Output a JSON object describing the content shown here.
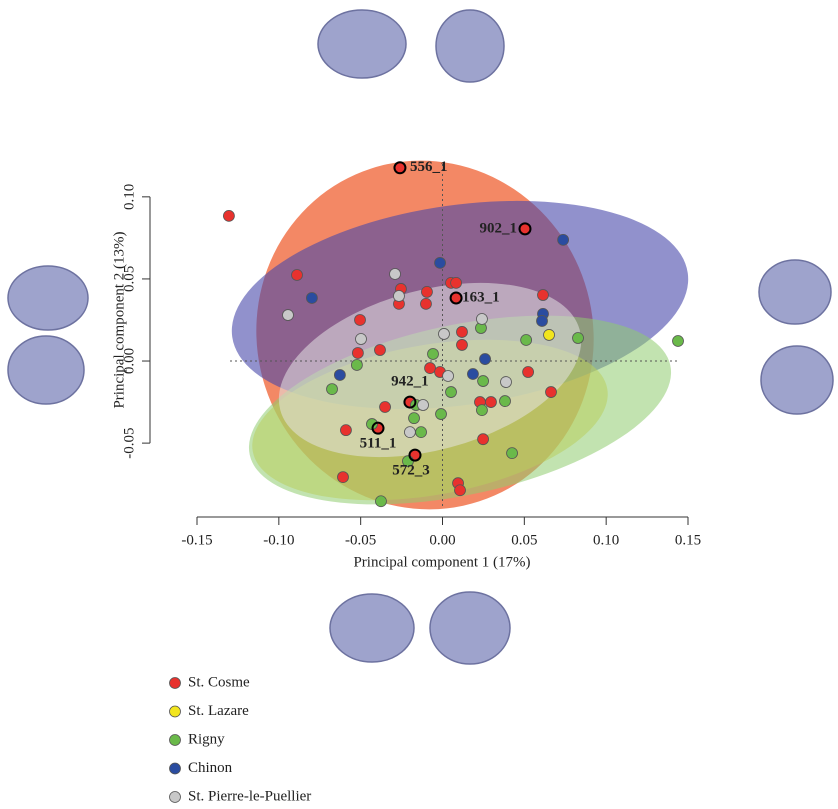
{
  "chart_data": {
    "type": "scatter",
    "xlabel": "Principal component 1 (17%)",
    "ylabel": "Principal component 2 (13%)",
    "xlim": [
      -0.15,
      0.15
    ],
    "ylim": [
      -0.095,
      0.12
    ],
    "xticks": [
      -0.15,
      {
        "value": -0.1,
        "label": "-0.10"
      },
      -0.05,
      {
        "value": 0,
        "label": "0.00"
      },
      0.05,
      {
        "value": 0.1,
        "label": "0.10"
      },
      0.15
    ],
    "yticks": [
      -0.05,
      {
        "value": 0,
        "label": "0.00"
      },
      0.05,
      {
        "value": 0.1,
        "label": "0.10"
      }
    ],
    "legend": "bottom-left",
    "series": [
      {
        "name": "St. Cosme",
        "color": "#e8322e",
        "x": [
          -0.1305,
          -0.0889,
          -0.026,
          0.0504,
          0.0083,
          -0.0095,
          -0.0101,
          -0.0254,
          -0.0266,
          0.0052,
          0.0083,
          -0.0504,
          -0.0517,
          -0.0382,
          0.0119,
          0.0119,
          -0.0076,
          -0.0015,
          0.0614,
          0.0523,
          0.0663,
          -0.0199,
          -0.0351,
          -0.059,
          -0.0394,
          -0.0168,
          -0.0608,
          0.0095,
          0.0107,
          0.0248,
          0.0229,
          0.0296
        ],
        "values": [
          0.0884,
          0.0524,
          0.1177,
          0.0805,
          0.0384,
          0.0421,
          0.0348,
          0.0439,
          0.0348,
          0.0476,
          0.0476,
          0.025,
          0.0049,
          0.0067,
          0.0177,
          0.0098,
          -0.0043,
          -0.0067,
          0.0402,
          -0.0067,
          -0.0189,
          -0.025,
          -0.028,
          -0.0421,
          -0.0409,
          -0.0573,
          -0.0707,
          -0.0744,
          -0.0787,
          -0.0476,
          -0.025,
          -0.025
        ]
      },
      {
        "name": "St. Lazare",
        "color": "#f2e51d",
        "x": [
          0.0651
        ],
        "values": [
          0.0159
        ]
      },
      {
        "name": "Rigny",
        "color": "#6ab94a",
        "x": [
          0.1439,
          0.0235,
          0.0511,
          0.0828,
          -0.0058,
          -0.0523,
          -0.0675,
          0.0248,
          0.0382,
          0.0052,
          0.0241,
          -0.0009,
          -0.0162,
          -0.0174,
          -0.0431,
          -0.0131,
          0.0425,
          -0.0211,
          -0.0376
        ],
        "values": [
          0.0122,
          0.0201,
          0.0128,
          0.014,
          0.0043,
          -0.0024,
          -0.0171,
          -0.0122,
          -0.0244,
          -0.0189,
          -0.0299,
          -0.0323,
          -0.0268,
          -0.0348,
          -0.0384,
          -0.0433,
          -0.0561,
          -0.061,
          -0.0854
        ]
      },
      {
        "name": "Chinon",
        "color": "#2a4ca0",
        "x": [
          -0.0798,
          -0.0015,
          0.0737,
          0.0614,
          0.0608,
          0.026,
          0.0186,
          -0.0627
        ],
        "values": [
          0.0384,
          0.0598,
          0.0738,
          0.0287,
          0.0244,
          0.0012,
          -0.0079,
          -0.0085
        ]
      },
      {
        "name": "St. Pierre-le-Puellier",
        "color": "#c8c8c8",
        "x": [
          -0.029,
          -0.0266,
          -0.0944,
          -0.0498,
          0.0241,
          0.0009,
          0.0034,
          0.0388,
          -0.0119,
          -0.0199
        ],
        "values": [
          0.053,
          0.0396,
          0.028,
          0.0134,
          0.0256,
          0.0165,
          -0.0091,
          -0.0128,
          -0.0268,
          -0.0433
        ]
      }
    ],
    "annotations": [
      {
        "text": "556_1",
        "x": -0.026,
        "y": 0.1177
      },
      {
        "text": "902_1",
        "x": 0.0504,
        "y": 0.0805
      },
      {
        "text": "163_1",
        "x": 0.0083,
        "y": 0.0384
      },
      {
        "text": "942_1",
        "x": -0.0199,
        "y": -0.025
      },
      {
        "text": "511_1",
        "x": -0.0394,
        "y": -0.0409
      },
      {
        "text": "572_3",
        "x": -0.0168,
        "y": -0.0573
      }
    ]
  }
}
